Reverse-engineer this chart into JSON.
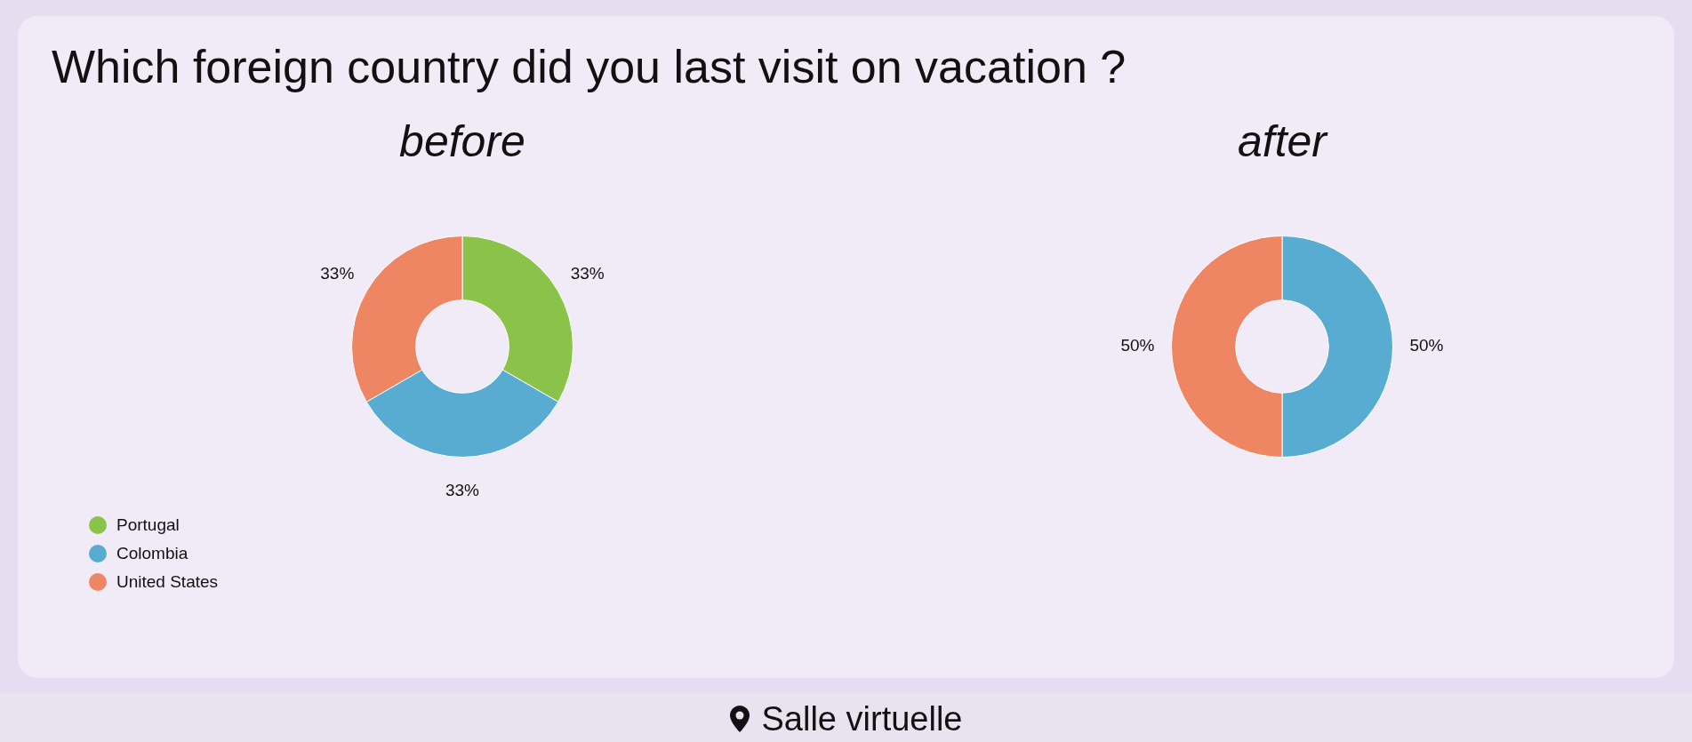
{
  "chart_data": [
    {
      "type": "donut",
      "title": "Which foreign country did you last visit on vacation ?",
      "subtitle": "before",
      "categories": [
        "Portugal",
        "Colombia",
        "United States"
      ],
      "values": [
        33,
        33,
        33
      ],
      "value_labels": [
        "33%",
        "33%",
        "33%"
      ],
      "colors": [
        "#8bc34a",
        "#58acd2",
        "#ee8563"
      ],
      "legend": "bottom left",
      "annotations": [
        "Salle virtuelle"
      ]
    },
    {
      "type": "donut",
      "subtitle": "after",
      "categories": [
        null,
        null
      ],
      "values": [
        50,
        50
      ],
      "value_labels": [
        "50%",
        "50%"
      ],
      "colors": [
        "#58acd2",
        "#ee8563"
      ]
    }
  ]
}
